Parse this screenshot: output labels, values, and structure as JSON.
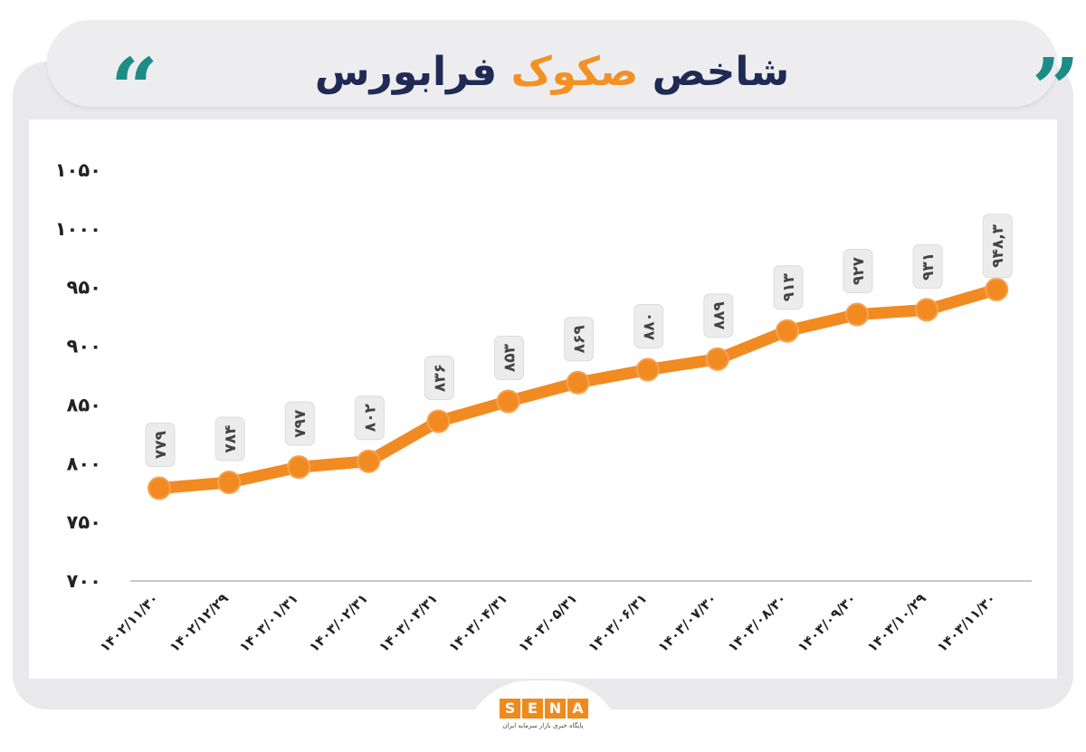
{
  "header": {
    "title_part1": "شاخص",
    "title_accent": "صکوک",
    "title_part2": "فرابورس",
    "open_quote": "“",
    "close_quote": "”"
  },
  "logo": {
    "letters": [
      "S",
      "E",
      "N",
      "A"
    ],
    "subtitle": "پایگاه خبری بازار سرمایه ایران"
  },
  "colors": {
    "line": "#f28a22",
    "title": "#1f2a55",
    "accent": "#f39124",
    "quote": "#1c8d86",
    "label_bg": "#ececec"
  },
  "chart_data": {
    "type": "line",
    "title": "شاخص صکوک فرابورس",
    "xlabel": "",
    "ylabel": "",
    "ylim": [
      700,
      1050
    ],
    "yticks": [
      700,
      750,
      800,
      850,
      900,
      950,
      1000,
      1050
    ],
    "ytick_labels": [
      "۷۰۰",
      "۷۵۰",
      "۸۰۰",
      "۸۵۰",
      "۹۰۰",
      "۹۵۰",
      "۱۰۰۰",
      "۱۰۵۰"
    ],
    "grid": false,
    "categories": [
      "۱۴۰۲/۱۱/۳۰",
      "۱۴۰۲/۱۲/۲۹",
      "۱۴۰۳/۰۱/۳۱",
      "۱۴۰۳/۰۲/۳۱",
      "۱۴۰۳/۰۳/۳۱",
      "۱۴۰۳/۰۴/۳۱",
      "۱۴۰۳/۰۵/۳۱",
      "۱۴۰۳/۰۶/۳۱",
      "۱۴۰۳/۰۷/۳۰",
      "۱۴۰۳/۰۸/۳۰",
      "۱۴۰۳/۰۹/۳۰",
      "۱۴۰۳/۱۰/۲۹",
      "۱۴۰۳/۱۱/۳۰"
    ],
    "series": [
      {
        "values": [
          779,
          784,
          797,
          802,
          836,
          853,
          869,
          880,
          889,
          913,
          927,
          931,
          948.3
        ],
        "labels": [
          "۷۷۹",
          "۷۸۴",
          "۷۹۷",
          "۸۰۲",
          "۸۳۶",
          "۸۵۳",
          "۸۶۹",
          "۸۸۰",
          "۸۸۹",
          "۹۱۳",
          "۹۲۷",
          "۹۳۱",
          "۹۴۸,۳"
        ]
      }
    ]
  }
}
